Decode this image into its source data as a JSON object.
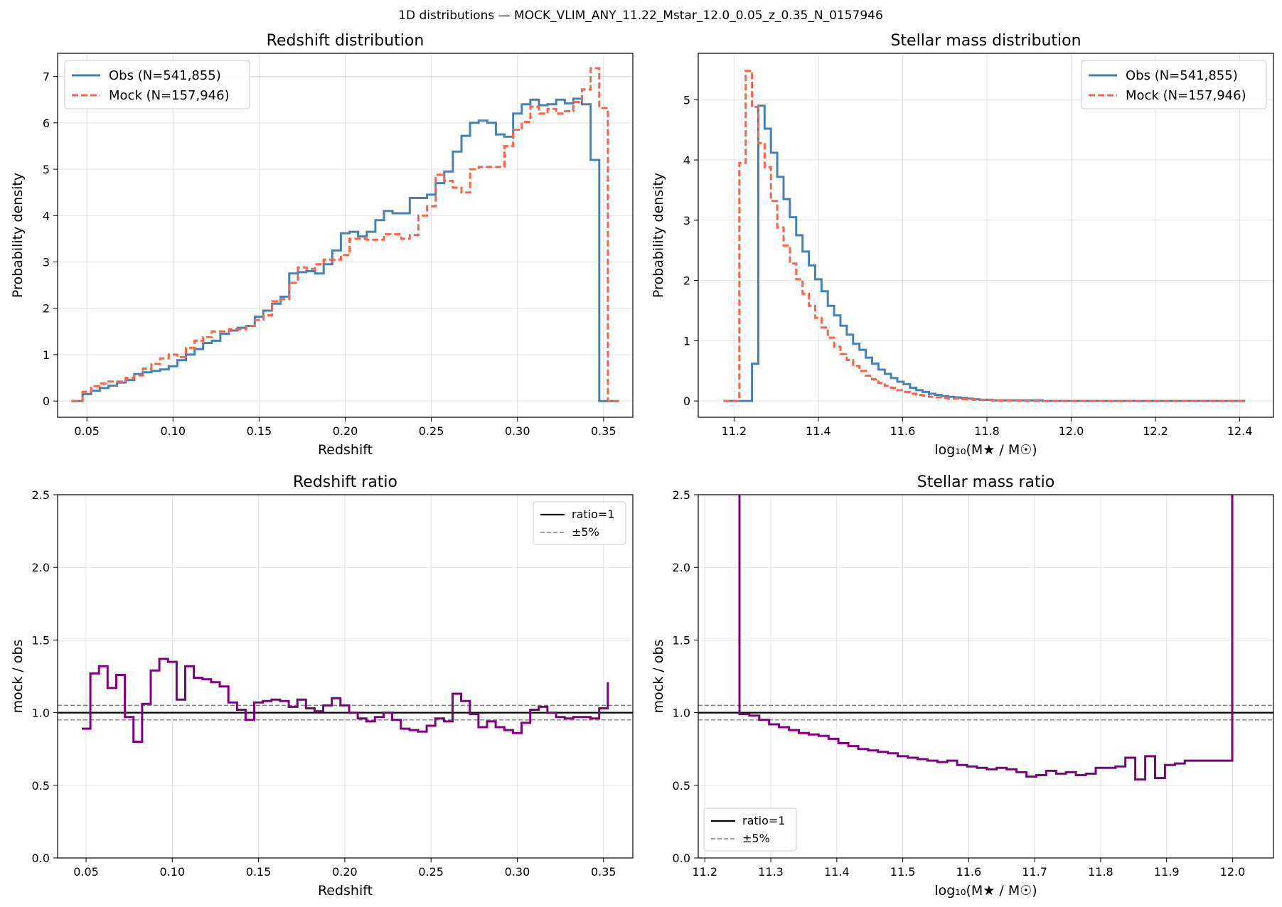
{
  "suptitle": "1D distributions — MOCK_VLIM_ANY_11.22_Mstar_12.0_0.05_z_0.35_N_0157946",
  "colors": {
    "obs": "#4682b4",
    "mock": "#ff6347",
    "ratio": "#800080",
    "ref": "#000000",
    "band": "#808080"
  },
  "chart_data": [
    {
      "id": "redshift-dist",
      "type": "line",
      "title": "Redshift distribution",
      "xlabel": "Redshift",
      "ylabel": "Probability density",
      "xlim": [
        0.033,
        0.367
      ],
      "ylim": [
        -0.35,
        7.5
      ],
      "xticks": [
        0.05,
        0.1,
        0.15,
        0.2,
        0.25,
        0.3,
        0.35
      ],
      "xtick_labels": [
        "0.05",
        "0.10",
        "0.15",
        "0.20",
        "0.25",
        "0.30",
        "0.35"
      ],
      "yticks": [
        0,
        1,
        2,
        3,
        4,
        5,
        6,
        7
      ],
      "ytick_labels": [
        "0",
        "1",
        "2",
        "3",
        "4",
        "5",
        "6",
        "7"
      ],
      "grid": true,
      "legend_position": "upper-left",
      "step": true,
      "x": [
        0.041,
        0.0475,
        0.0525,
        0.0575,
        0.0625,
        0.0675,
        0.0725,
        0.0775,
        0.0825,
        0.0875,
        0.0925,
        0.0975,
        0.1025,
        0.1075,
        0.1125,
        0.1175,
        0.1225,
        0.1275,
        0.1325,
        0.1375,
        0.1425,
        0.1475,
        0.1525,
        0.1575,
        0.1625,
        0.1675,
        0.1725,
        0.1775,
        0.1825,
        0.1875,
        0.1925,
        0.1975,
        0.2025,
        0.2075,
        0.2125,
        0.2175,
        0.2225,
        0.2275,
        0.2325,
        0.2375,
        0.2425,
        0.2475,
        0.2525,
        0.2575,
        0.2625,
        0.2675,
        0.2725,
        0.2775,
        0.2825,
        0.2875,
        0.2925,
        0.2975,
        0.3025,
        0.3075,
        0.3125,
        0.3175,
        0.3225,
        0.3275,
        0.3325,
        0.3375,
        0.3425,
        0.3475,
        0.3525,
        0.359
      ],
      "series": [
        {
          "name": "Obs  (N=541,855)",
          "style": "solid",
          "values": [
            0,
            0.15,
            0.22,
            0.28,
            0.33,
            0.4,
            0.45,
            0.58,
            0.62,
            0.65,
            0.68,
            0.75,
            0.88,
            1.0,
            1.12,
            1.25,
            1.3,
            1.45,
            1.52,
            1.58,
            1.62,
            1.82,
            1.95,
            2.1,
            2.25,
            2.75,
            2.78,
            2.8,
            2.75,
            2.95,
            3.25,
            3.62,
            3.65,
            3.55,
            3.65,
            3.9,
            4.1,
            4.05,
            4.05,
            4.38,
            4.38,
            4.45,
            4.7,
            4.95,
            5.38,
            5.72,
            6.0,
            6.05,
            6.0,
            5.75,
            5.7,
            6.2,
            6.4,
            6.5,
            6.38,
            6.4,
            6.5,
            6.42,
            6.52,
            6.4,
            5.2,
            0,
            0,
            0
          ]
        },
        {
          "name": "Mock (N=157,946)",
          "style": "dashed",
          "values": [
            0,
            0.2,
            0.32,
            0.38,
            0.42,
            0.42,
            0.5,
            0.55,
            0.7,
            0.8,
            0.92,
            1.0,
            0.95,
            1.15,
            1.3,
            1.38,
            1.5,
            1.5,
            1.55,
            1.55,
            1.62,
            1.75,
            1.85,
            2.15,
            2.2,
            2.55,
            2.88,
            2.85,
            2.95,
            3.05,
            3.05,
            3.15,
            3.5,
            3.5,
            3.48,
            3.48,
            3.6,
            3.6,
            3.5,
            3.58,
            4.0,
            4.2,
            4.88,
            4.75,
            4.6,
            4.5,
            5.0,
            5.05,
            5.05,
            5.05,
            5.5,
            5.85,
            6.02,
            6.35,
            6.2,
            6.3,
            6.2,
            6.25,
            6.45,
            6.72,
            7.18,
            6.32,
            0,
            0
          ]
        }
      ]
    },
    {
      "id": "mass-dist",
      "type": "line",
      "title": "Stellar mass distribution",
      "xlabel": "log₁₀(M★ / M☉)",
      "ylabel": "Probability density",
      "xlim": [
        11.115,
        12.48
      ],
      "ylim": [
        -0.27,
        5.77
      ],
      "xticks": [
        11.2,
        11.4,
        11.6,
        11.8,
        12.0,
        12.2,
        12.4
      ],
      "xtick_labels": [
        "11.2",
        "11.4",
        "11.6",
        "11.8",
        "12.0",
        "12.2",
        "12.4"
      ],
      "yticks": [
        0,
        1,
        2,
        3,
        4,
        5
      ],
      "ytick_labels": [
        "0",
        "1",
        "2",
        "3",
        "4",
        "5"
      ],
      "grid": true,
      "legend_position": "upper-right",
      "step": true,
      "x": [
        11.175,
        11.1975,
        11.2125,
        11.2275,
        11.2425,
        11.2575,
        11.2725,
        11.2875,
        11.3025,
        11.3175,
        11.3325,
        11.3475,
        11.3625,
        11.3775,
        11.3925,
        11.4075,
        11.4225,
        11.4375,
        11.4525,
        11.4675,
        11.4825,
        11.4975,
        11.5125,
        11.5275,
        11.5425,
        11.5575,
        11.5725,
        11.5875,
        11.6025,
        11.6175,
        11.6325,
        11.6475,
        11.6625,
        11.6775,
        11.6925,
        11.7075,
        11.7225,
        11.7375,
        11.7525,
        11.7675,
        11.7825,
        11.7975,
        11.8125,
        11.8275,
        11.8425,
        11.8575,
        11.8725,
        11.8875,
        11.9025,
        11.9175,
        11.9325,
        11.9475,
        11.9625,
        11.9775,
        11.9925,
        12.0075,
        12.0225,
        12.0375,
        12.0525,
        12.0675,
        12.0825,
        12.0975,
        12.1125,
        12.1275,
        12.1425,
        12.1575,
        12.1725,
        12.1875,
        12.2025,
        12.2175,
        12.2325,
        12.2475,
        12.2625,
        12.2775,
        12.2925,
        12.3075,
        12.3225,
        12.3375,
        12.3525,
        12.3675,
        12.3825,
        12.4125
      ],
      "series": [
        {
          "name": "Obs  (N=541,855)",
          "style": "solid",
          "values": [
            0,
            0,
            0,
            0,
            0.62,
            4.9,
            4.52,
            4.12,
            3.72,
            3.35,
            3.05,
            2.75,
            2.48,
            2.25,
            2.02,
            1.82,
            1.58,
            1.42,
            1.25,
            1.1,
            0.95,
            0.85,
            0.72,
            0.62,
            0.52,
            0.45,
            0.38,
            0.32,
            0.28,
            0.22,
            0.18,
            0.15,
            0.12,
            0.1,
            0.08,
            0.07,
            0.06,
            0.05,
            0.04,
            0.03,
            0.02,
            0.02,
            0.01,
            0.01,
            0.01,
            0.01,
            0.01,
            0.01,
            0.01,
            0.01,
            0,
            0,
            0,
            0,
            0,
            0,
            0,
            0,
            0,
            0,
            0,
            0,
            0,
            0,
            0,
            0,
            0,
            0,
            0,
            0,
            0,
            0,
            0,
            0,
            0,
            0,
            0,
            0,
            0,
            0,
            0,
            0
          ]
        },
        {
          "name": "Mock (N=157,946)",
          "style": "dashed",
          "values": [
            0,
            0,
            3.95,
            5.48,
            4.88,
            4.28,
            3.88,
            3.32,
            2.88,
            2.58,
            2.28,
            2.02,
            1.78,
            1.58,
            1.38,
            1.22,
            1.05,
            0.9,
            0.78,
            0.68,
            0.58,
            0.5,
            0.42,
            0.36,
            0.3,
            0.25,
            0.22,
            0.18,
            0.15,
            0.12,
            0.1,
            0.09,
            0.07,
            0.06,
            0.05,
            0.04,
            0.04,
            0.03,
            0.03,
            0.02,
            0.02,
            0.02,
            0.01,
            0.01,
            0.01,
            0.01,
            0.01,
            0,
            0,
            0,
            0,
            0,
            0,
            0,
            0,
            0,
            0,
            0,
            0,
            0,
            0,
            0,
            0,
            0,
            0,
            0,
            0,
            0,
            0,
            0,
            0,
            0,
            0,
            0,
            0,
            0,
            0,
            0,
            0,
            0,
            0,
            0
          ]
        }
      ]
    },
    {
      "id": "redshift-ratio",
      "type": "line",
      "title": "Redshift ratio",
      "xlabel": "Redshift",
      "ylabel": "mock / obs",
      "xlim": [
        0.0335,
        0.367
      ],
      "ylim": [
        0,
        2.5
      ],
      "xticks": [
        0.05,
        0.1,
        0.15,
        0.2,
        0.25,
        0.3,
        0.35
      ],
      "xtick_labels": [
        "0.05",
        "0.10",
        "0.15",
        "0.20",
        "0.25",
        "0.30",
        "0.35"
      ],
      "yticks": [
        0.0,
        0.5,
        1.0,
        1.5,
        2.0,
        2.5
      ],
      "ytick_labels": [
        "0.0",
        "0.5",
        "1.0",
        "1.5",
        "2.0",
        "2.5"
      ],
      "grid": true,
      "legend_position": "upper-right",
      "step": true,
      "reference": {
        "label": "ratio=1",
        "value": 1.0
      },
      "band": {
        "label": "±5%",
        "lower": 0.95,
        "upper": 1.05
      },
      "x": [
        0.0475,
        0.0525,
        0.0575,
        0.0625,
        0.0675,
        0.0725,
        0.0775,
        0.0825,
        0.0875,
        0.0925,
        0.0975,
        0.1025,
        0.1075,
        0.1125,
        0.1175,
        0.1225,
        0.1275,
        0.1325,
        0.1375,
        0.1425,
        0.1475,
        0.1525,
        0.1575,
        0.1625,
        0.1675,
        0.1725,
        0.1775,
        0.1825,
        0.1875,
        0.1925,
        0.1975,
        0.2025,
        0.2075,
        0.2125,
        0.2175,
        0.2225,
        0.2275,
        0.2325,
        0.2375,
        0.2425,
        0.2475,
        0.2525,
        0.2575,
        0.2625,
        0.2675,
        0.2725,
        0.2775,
        0.2825,
        0.2875,
        0.2925,
        0.2975,
        0.3025,
        0.3075,
        0.3125,
        0.3175,
        0.3225,
        0.3275,
        0.3325,
        0.3375,
        0.3425,
        0.3475,
        0.3525
      ],
      "series": [
        {
          "name": "ratio",
          "values": [
            0.89,
            1.27,
            1.32,
            1.17,
            1.26,
            0.97,
            0.8,
            1.06,
            1.29,
            1.37,
            1.35,
            1.09,
            1.32,
            1.24,
            1.23,
            1.21,
            1.18,
            1.07,
            1.02,
            0.95,
            1.07,
            1.08,
            1.09,
            1.08,
            1.04,
            1.09,
            1.03,
            1.01,
            1.05,
            1.1,
            1.05,
            1.0,
            0.96,
            0.94,
            0.97,
            1.0,
            0.95,
            0.89,
            0.88,
            0.87,
            0.91,
            0.96,
            0.94,
            1.13,
            1.08,
            0.99,
            0.9,
            0.94,
            0.9,
            0.88,
            0.86,
            0.93,
            1.02,
            1.04,
            1.0,
            0.97,
            0.96,
            0.97,
            0.97,
            0.96,
            1.03,
            1.21
          ]
        }
      ]
    },
    {
      "id": "mass-ratio",
      "type": "line",
      "title": "Stellar mass ratio",
      "xlabel": "log₁₀(M★ / M☉)",
      "ylabel": "mock / obs",
      "xlim": [
        11.19,
        12.062
      ],
      "ylim": [
        0,
        2.5
      ],
      "xticks": [
        11.2,
        11.3,
        11.4,
        11.5,
        11.6,
        11.7,
        11.8,
        11.9,
        12.0
      ],
      "xtick_labels": [
        "11.2",
        "11.3",
        "11.4",
        "11.5",
        "11.6",
        "11.7",
        "11.8",
        "11.9",
        "12.0"
      ],
      "yticks": [
        0.0,
        0.5,
        1.0,
        1.5,
        2.0,
        2.5
      ],
      "ytick_labels": [
        "0.0",
        "0.5",
        "1.0",
        "1.5",
        "2.0",
        "2.5"
      ],
      "grid": true,
      "legend_position": "lower-left",
      "step": true,
      "reference": {
        "label": "ratio=1",
        "value": 1.0
      },
      "band": {
        "label": "±5%",
        "lower": 0.95,
        "upper": 1.05
      },
      "x": [
        11.2525,
        11.2525,
        11.2675,
        11.2825,
        11.2975,
        11.3125,
        11.3275,
        11.3425,
        11.3575,
        11.3725,
        11.3875,
        11.4025,
        11.4175,
        11.4325,
        11.4475,
        11.4625,
        11.4775,
        11.4925,
        11.5075,
        11.5225,
        11.5375,
        11.5525,
        11.5675,
        11.5825,
        11.5975,
        11.6125,
        11.6275,
        11.6425,
        11.6575,
        11.6725,
        11.6875,
        11.7025,
        11.7175,
        11.7325,
        11.7475,
        11.7625,
        11.7775,
        11.7925,
        11.8075,
        11.8225,
        11.8375,
        11.8525,
        11.8675,
        11.8825,
        11.8975,
        11.9125,
        11.9275,
        11.9425,
        11.9575,
        11.9725,
        11.9875,
        11.9995,
        11.9995
      ],
      "series": [
        {
          "name": "ratio",
          "values": [
            2.5,
            0.99,
            0.98,
            0.95,
            0.92,
            0.9,
            0.88,
            0.86,
            0.85,
            0.84,
            0.82,
            0.79,
            0.77,
            0.75,
            0.74,
            0.73,
            0.72,
            0.7,
            0.69,
            0.68,
            0.67,
            0.66,
            0.67,
            0.64,
            0.63,
            0.62,
            0.61,
            0.62,
            0.61,
            0.59,
            0.56,
            0.57,
            0.6,
            0.58,
            0.59,
            0.57,
            0.58,
            0.62,
            0.62,
            0.63,
            0.69,
            0.54,
            0.7,
            0.55,
            0.64,
            0.65,
            0.67,
            0.67,
            0.67,
            0.67,
            0.67,
            2.5,
            2.5
          ]
        }
      ]
    }
  ]
}
